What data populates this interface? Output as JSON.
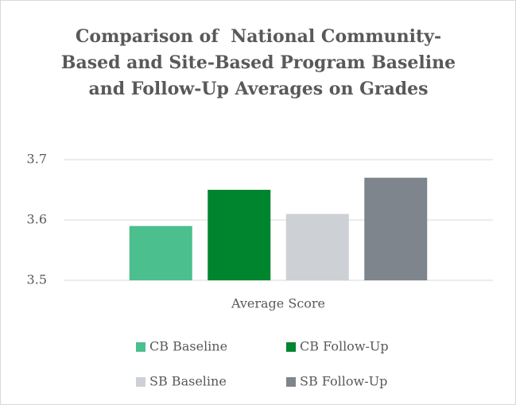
{
  "chart_data": {
    "type": "bar",
    "title": "Comparison of  National Community-Based and Site-Based Program Baseline and Follow-Up Averages on Grades",
    "categories": [
      "Average Score"
    ],
    "series": [
      {
        "name": "CB Baseline",
        "color": "#4bbf8e",
        "values": [
          3.59
        ]
      },
      {
        "name": "CB Follow-Up",
        "color": "#00852f",
        "values": [
          3.65
        ]
      },
      {
        "name": "SB Baseline",
        "color": "#cdd0d4",
        "values": [
          3.61
        ]
      },
      {
        "name": "SB Follow-Up",
        "color": "#7f858d",
        "values": [
          3.67
        ]
      }
    ],
    "ylim": [
      3.5,
      3.7
    ],
    "yticks": [
      3.5,
      3.6,
      3.7
    ],
    "grid": true,
    "legend": "bottom"
  }
}
